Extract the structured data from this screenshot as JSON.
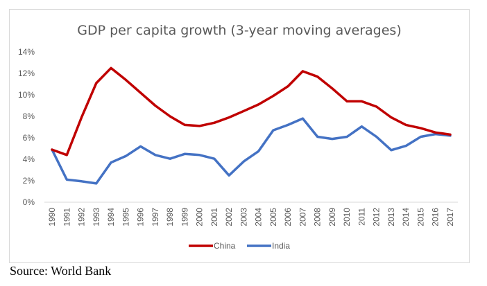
{
  "chart_data": {
    "type": "line",
    "title": "GDP per capita growth (3-year moving averages)",
    "xlabel": "",
    "ylabel": "",
    "ylim": [
      0,
      14
    ],
    "yticks": [
      0,
      2,
      4,
      6,
      8,
      10,
      12,
      14
    ],
    "ytick_labels": [
      "0%",
      "2%",
      "4%",
      "6%",
      "8%",
      "10%",
      "12%",
      "14%"
    ],
    "grid": false,
    "legend_position": "bottom",
    "x": [
      "1990",
      "1991",
      "1992",
      "1993",
      "1994",
      "1995",
      "1996",
      "1997",
      "1998",
      "1999",
      "2000",
      "2001",
      "2002",
      "2003",
      "2004",
      "2005",
      "2006",
      "2007",
      "2008",
      "2009",
      "2010",
      "2011",
      "2012",
      "2013",
      "2014",
      "2015",
      "2016",
      "2017"
    ],
    "series": [
      {
        "name": "China",
        "color": "#C00000",
        "values": [
          4.9,
          4.4,
          7.9,
          11.1,
          12.5,
          11.4,
          10.2,
          9.0,
          8.0,
          7.2,
          7.1,
          7.4,
          7.9,
          8.5,
          9.1,
          9.9,
          10.8,
          12.2,
          11.7,
          10.6,
          9.4,
          9.4,
          8.9,
          7.9,
          7.2,
          6.9,
          6.5,
          6.3
        ]
      },
      {
        "name": "India",
        "color": "#4472C4",
        "values": [
          4.9,
          2.1,
          1.95,
          1.75,
          3.7,
          4.3,
          5.2,
          4.4,
          4.05,
          4.5,
          4.4,
          4.05,
          2.5,
          3.8,
          4.75,
          6.7,
          7.2,
          7.8,
          6.1,
          5.9,
          6.1,
          7.05,
          6.1,
          4.85,
          5.25,
          6.1,
          6.35,
          6.2
        ]
      }
    ]
  },
  "source": "Source: World Bank"
}
